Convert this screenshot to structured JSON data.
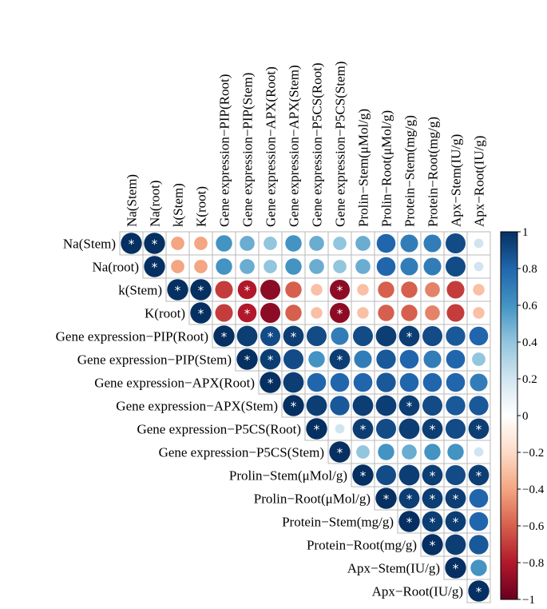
{
  "chart_data": {
    "type": "heatmap",
    "style": "upper-triangle correlogram with circles",
    "variables": [
      "Na(Stem)",
      "Na(root)",
      "k(Stem)",
      "K(root)",
      "Gene expression−PIP(Root)",
      "Gene expression−PIP(Stem)",
      "Gene expression−APX(Root)",
      "Gene expression−APX(Stem)",
      "Gene expression−P5CS(Root)",
      "Gene expression−P5CS(Stem)",
      "Prolin−Stem(μMol/g)",
      "Prolin−Root(μMol/g)",
      "Protein−Stem(mg/g)",
      "Protein−Root(mg/g)",
      "Apx−Stem(IU/g)",
      "Apx−Root(IU/g)"
    ],
    "column_labels": [
      "Na(Stem)",
      "Na(root)",
      "k(Stem)",
      "K(root)",
      "Gene expression−PIP(Root)",
      "Gene expression−PIP(Stem)",
      "Gene expression−APX(Root)",
      "Gene expression−APX(Stem)",
      "Gene expression−P5CS(Root)",
      "Gene expression−P5CS(Stem)",
      "Prolin−Stem(μMol/g)",
      "Prolin−Root(μMol/g)",
      "Protein−Stem(mg/g)",
      "Protein−Root(mg/g)",
      "Apx−Stem(IU/g)",
      "Apx−Root(IU/g)"
    ],
    "upper_triangle": [
      [
        1.0,
        1.0,
        -0.4,
        -0.4,
        0.6,
        0.5,
        0.4,
        0.6,
        0.5,
        0.4,
        0.5,
        0.8,
        0.7,
        0.7,
        0.9,
        0.2
      ],
      [
        1.0,
        -0.4,
        -0.4,
        0.6,
        0.5,
        0.4,
        0.6,
        0.5,
        0.4,
        0.5,
        0.8,
        0.7,
        0.7,
        0.9,
        0.2
      ],
      [
        1.0,
        1.0,
        -0.7,
        -0.8,
        -0.9,
        -0.6,
        -0.3,
        -0.9,
        -0.3,
        -0.6,
        -0.6,
        -0.5,
        -0.7,
        -0.3
      ],
      [
        1.0,
        -0.7,
        -0.8,
        -0.9,
        -0.6,
        -0.3,
        -0.9,
        -0.3,
        -0.6,
        -0.6,
        -0.5,
        -0.7,
        -0.3
      ],
      [
        1.0,
        0.95,
        0.9,
        0.95,
        0.9,
        0.7,
        0.9,
        0.95,
        0.95,
        0.9,
        0.85,
        0.8
      ],
      [
        1.0,
        0.95,
        0.9,
        0.6,
        0.95,
        0.7,
        0.85,
        0.8,
        0.7,
        0.8,
        0.4
      ],
      [
        1.0,
        0.95,
        0.8,
        0.8,
        0.8,
        0.85,
        0.8,
        0.8,
        0.8,
        0.7
      ],
      [
        1.0,
        0.95,
        0.85,
        0.95,
        0.95,
        0.95,
        0.9,
        0.85,
        0.85
      ],
      [
        1.0,
        0.2,
        0.95,
        0.9,
        0.95,
        0.95,
        0.9,
        0.95
      ],
      [
        1.0,
        0.4,
        0.6,
        0.5,
        0.6,
        0.6,
        0.2
      ],
      [
        1.0,
        0.9,
        0.95,
        0.95,
        0.9,
        0.95
      ],
      [
        1.0,
        0.95,
        0.95,
        0.95,
        0.8
      ],
      [
        1.0,
        0.95,
        0.95,
        0.8
      ],
      [
        1.0,
        0.95,
        0.85
      ],
      [
        1.0,
        0.6
      ],
      [
        1.0
      ]
    ],
    "significant_upper_triangle": [
      [
        true,
        true,
        false,
        false,
        false,
        false,
        false,
        false,
        false,
        false,
        false,
        false,
        false,
        false,
        false,
        false
      ],
      [
        true,
        false,
        false,
        false,
        false,
        false,
        false,
        false,
        false,
        false,
        false,
        false,
        false,
        false,
        false
      ],
      [
        true,
        true,
        false,
        true,
        false,
        false,
        false,
        true,
        false,
        false,
        false,
        false,
        false,
        false
      ],
      [
        true,
        false,
        true,
        false,
        false,
        false,
        true,
        false,
        false,
        false,
        false,
        false,
        false
      ],
      [
        true,
        false,
        true,
        true,
        false,
        false,
        false,
        false,
        true,
        false,
        false,
        false
      ],
      [
        true,
        true,
        false,
        false,
        true,
        false,
        false,
        false,
        false,
        false,
        false
      ],
      [
        true,
        false,
        false,
        false,
        false,
        false,
        false,
        false,
        false,
        false
      ],
      [
        true,
        false,
        false,
        false,
        false,
        true,
        false,
        false,
        false
      ],
      [
        true,
        false,
        true,
        false,
        false,
        true,
        false,
        true
      ],
      [
        true,
        false,
        false,
        false,
        false,
        false,
        false
      ],
      [
        true,
        false,
        false,
        true,
        false,
        true
      ],
      [
        true,
        true,
        true,
        true,
        false
      ],
      [
        true,
        true,
        true,
        false
      ],
      [
        true,
        false,
        false
      ],
      [
        true,
        false
      ],
      [
        true
      ]
    ],
    "significance_marker": "*",
    "colorbar": {
      "range": [
        -1,
        1
      ],
      "ticks": [
        "1",
        "0.8",
        "0.6",
        "0.4",
        "0.2",
        "0",
        "−0.2",
        "−0.4",
        "−0.6",
        "−0.8",
        "−1"
      ],
      "colors": {
        "low": "#67001f",
        "mid": "#ffffff",
        "high": "#053061"
      }
    }
  }
}
